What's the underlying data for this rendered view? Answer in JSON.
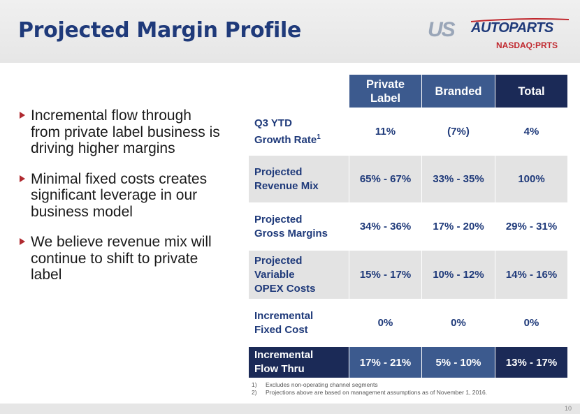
{
  "title": "Projected Margin Profile",
  "logo": {
    "us": "US",
    "autoparts": "AUTOPARTS",
    "ticker": "NASDAQ:PRTS"
  },
  "bullets": [
    "Incremental flow through from private label business is driving higher margins",
    "Minimal fixed costs creates significant leverage in our business model",
    "We believe revenue mix will continue to shift to private label"
  ],
  "table": {
    "headers": [
      "Private Label",
      "Branded",
      "Total"
    ],
    "rows": [
      {
        "label_line1": "Q3 YTD",
        "label_line2": "Growth Rate",
        "label_sup": "1",
        "label_line3": "",
        "values": [
          "11%",
          "(7%)",
          "4%"
        ]
      },
      {
        "label_line1": "Projected",
        "label_line2": "Revenue Mix",
        "label_sup": "",
        "label_line3": "",
        "values": [
          "65% - 67%",
          "33% - 35%",
          "100%"
        ]
      },
      {
        "label_line1": "Projected",
        "label_line2": "Gross Margins",
        "label_sup": "",
        "label_line3": "",
        "values": [
          "34% - 36%",
          "17% - 20%",
          "29% - 31%"
        ]
      },
      {
        "label_line1": "Projected",
        "label_line2": "Variable",
        "label_sup": "",
        "label_line3": "OPEX Costs",
        "values": [
          "15% - 17%",
          "10% - 12%",
          "14% - 16%"
        ]
      },
      {
        "label_line1": "Incremental",
        "label_line2": "Fixed Cost",
        "label_sup": "",
        "label_line3": "",
        "values": [
          "0%",
          "0%",
          "0%"
        ]
      },
      {
        "label_line1": "Incremental",
        "label_line2": "Flow Thru",
        "label_sup": "",
        "label_line3": "",
        "values": [
          "17% - 21%",
          "5% - 10%",
          "13% - 17%"
        ]
      }
    ]
  },
  "footnotes": [
    {
      "num": "1)",
      "text": "Excludes non-operating channel segments"
    },
    {
      "num": "2)",
      "text": "Projections above are based on management assumptions as of November 1, 2016."
    }
  ],
  "page_number": "10",
  "colors": {
    "title": "#1f3a7a",
    "header_mid": "#3c5a8e",
    "header_dark": "#1b2a57",
    "bullet": "#b02a30",
    "stripe": "#e3e3e3"
  }
}
